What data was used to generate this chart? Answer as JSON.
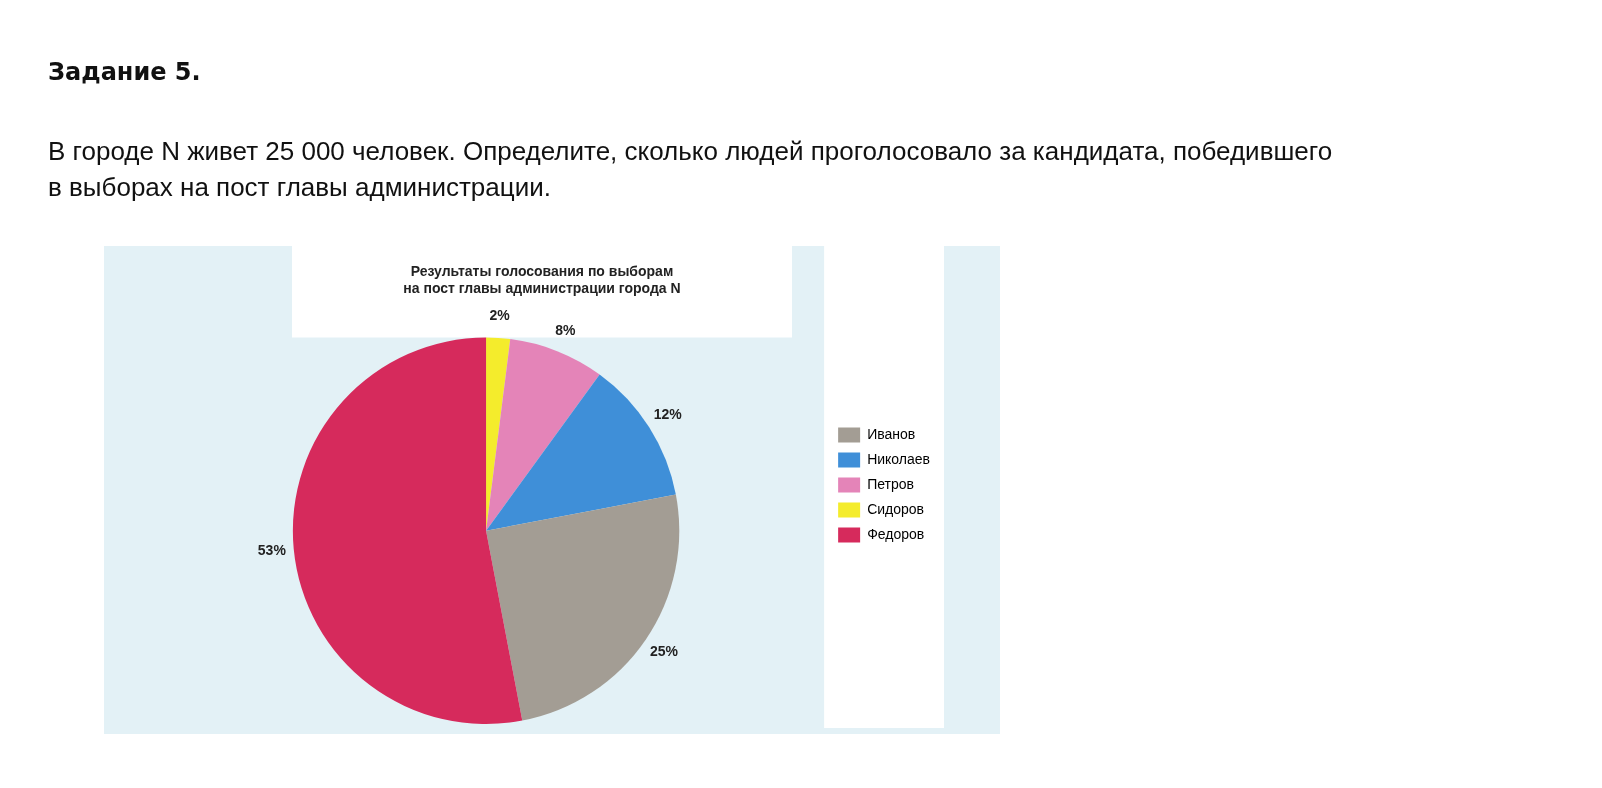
{
  "chart_data": {
    "type": "pie",
    "title": "Результаты голосования по выборам\nна пост главы администрации города N",
    "annotations": [
      "Задание 5.",
      "В городе N живет 25 000 человек. Определите, сколько людей проголосовало за кандидата, победившего в выборах на пост главы администрации."
    ],
    "categories": [
      "Иванов",
      "Николаев",
      "Петров",
      "Сидоров",
      "Федоров"
    ],
    "values": [
      25,
      12,
      8,
      2,
      53
    ],
    "value_labels": [
      "25%",
      "12%",
      "8%",
      "2%",
      "53%"
    ],
    "colors": [
      "#a39d94",
      "#3f8fd8",
      "#e484b8",
      "#f4ec2c",
      "#d62a5c"
    ],
    "legend": "right"
  }
}
